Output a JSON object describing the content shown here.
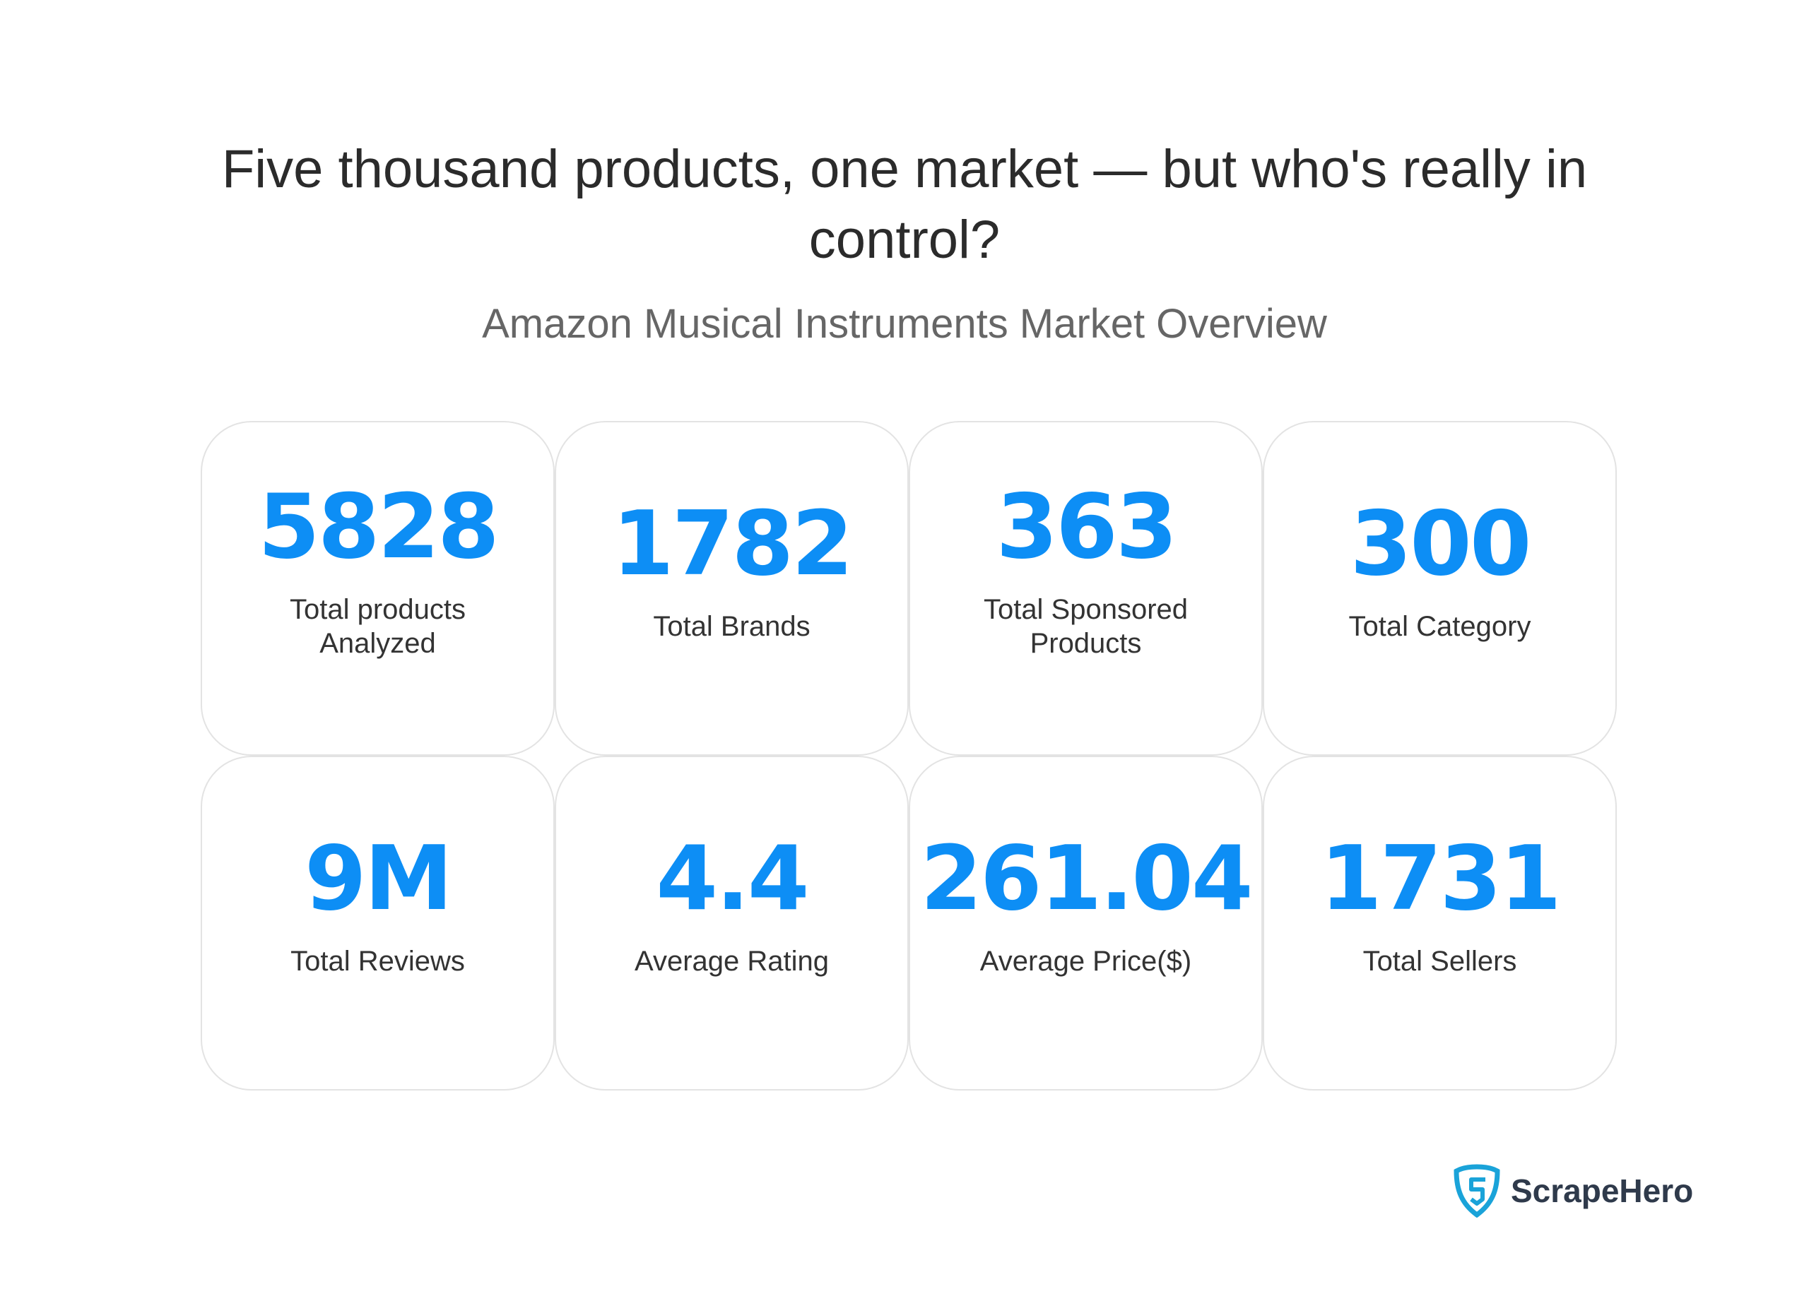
{
  "header": {
    "title": "Five thousand products, one market — but who's really in control?",
    "subtitle": "Amazon Musical Instruments Market Overview"
  },
  "stats": [
    {
      "value": "5828",
      "label": "Total products Analyzed"
    },
    {
      "value": "1782",
      "label": "Total Brands"
    },
    {
      "value": "363",
      "label": "Total Sponsored Products"
    },
    {
      "value": "300",
      "label": "Total Category"
    },
    {
      "value": "9M",
      "label": "Total Reviews"
    },
    {
      "value": "4.4",
      "label": "Average Rating"
    },
    {
      "value": "261.04",
      "label": "Average Price($)"
    },
    {
      "value": "1731",
      "label": "Total Sellers"
    }
  ],
  "brand": {
    "name": "ScrapeHero",
    "icon": "shield-s-logo-icon",
    "color": "#1aa3d9"
  },
  "colors": {
    "accent": "#0d8ef5"
  }
}
